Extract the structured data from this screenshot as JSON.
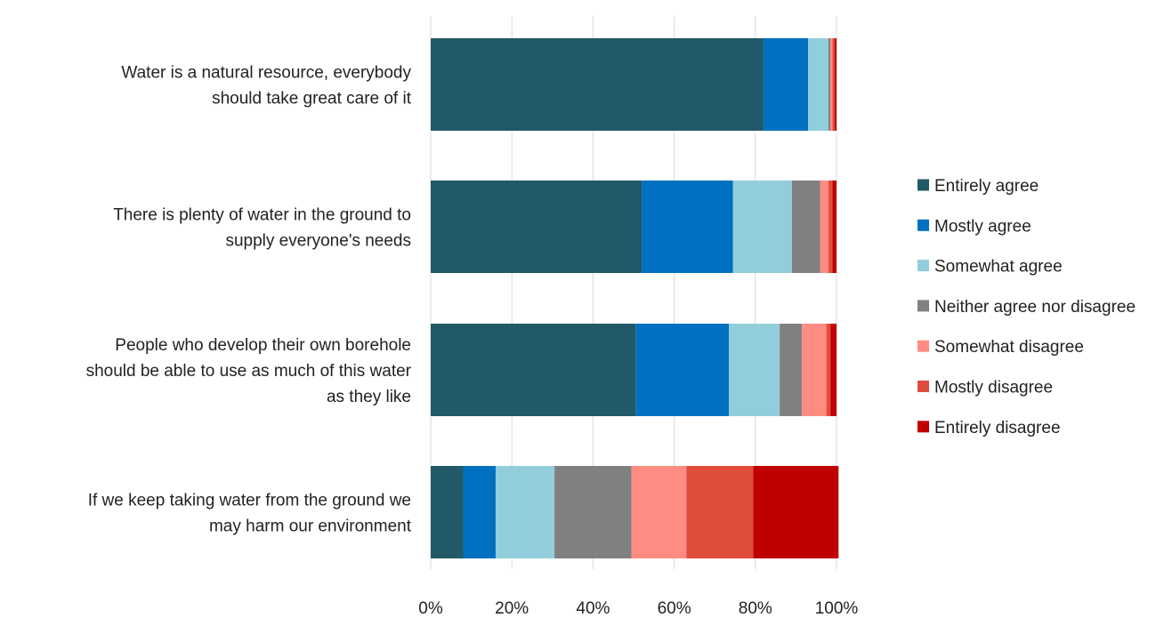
{
  "chart_data": {
    "type": "bar",
    "orientation": "horizontal",
    "stacked": "percent",
    "categories": [
      [
        "Water is a natural resource, everybody",
        "should take great care of it"
      ],
      [
        "There is plenty of water in the ground to",
        "supply everyone's needs"
      ],
      [
        "People who develop their own borehole",
        "should be able to use as much of this water",
        "as they like"
      ],
      [
        "If we keep taking water from the ground we",
        "may harm our environment"
      ]
    ],
    "series": [
      {
        "name": "Entirely agree",
        "color": "#215968",
        "values": [
          82,
          52,
          50.5,
          8
        ]
      },
      {
        "name": "Mostly agree",
        "color": "#0070c0",
        "values": [
          11,
          22.5,
          23,
          8
        ]
      },
      {
        "name": "Somewhat agree",
        "color": "#92cddc",
        "values": [
          5,
          14.5,
          12.5,
          14.5
        ]
      },
      {
        "name": "Neither agree nor disagree",
        "color": "#808080",
        "values": [
          0.5,
          7,
          5.5,
          19
        ]
      },
      {
        "name": "Somewhat disagree",
        "color": "#ff8c82",
        "values": [
          0.5,
          2,
          6,
          13.5
        ]
      },
      {
        "name": "Mostly disagree",
        "color": "#e04d3c",
        "values": [
          0.5,
          1,
          1,
          16.5
        ]
      },
      {
        "name": "Entirely disagree",
        "color": "#c00000",
        "values": [
          0.5,
          1,
          1.5,
          21
        ]
      }
    ],
    "xlim": [
      0,
      100
    ],
    "xticks": [
      "0%",
      "20%",
      "40%",
      "60%",
      "80%",
      "100%"
    ],
    "grid": true,
    "legend_position": "right"
  }
}
